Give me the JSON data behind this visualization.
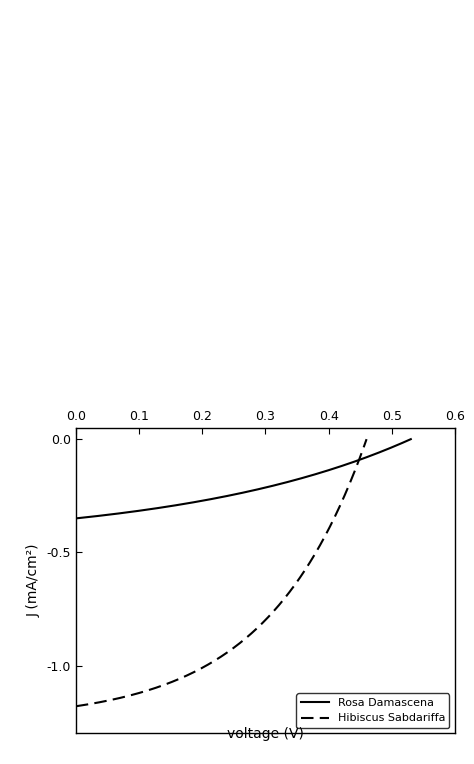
{
  "rosa_damascena": {
    "label": "Rosa Damascena",
    "linestyle": "solid",
    "color": "black",
    "Jsc": -0.35,
    "Voc": 0.53,
    "n": 14,
    "n2": 2.0
  },
  "hibiscus_sabdariffa": {
    "label": "Hibiscus Sabdariffa",
    "linestyle": "dashed",
    "color": "black",
    "Jsc": -1.18,
    "Voc": 0.46,
    "n": 6,
    "n2": 2.0
  },
  "xlim": [
    0.0,
    0.6
  ],
  "ylim": [
    -1.3,
    0.05
  ],
  "xticks": [
    0.0,
    0.1,
    0.2,
    0.3,
    0.4,
    0.5,
    0.6
  ],
  "yticks": [
    0.0,
    -0.5,
    -1.0
  ],
  "xlabel": "voltage (V)",
  "ylabel": "J (mA/cm²)",
  "figwidth": 4.74,
  "figheight": 7.64,
  "dpi": 100,
  "background_color": "#ffffff",
  "text_color": "#000000",
  "legend_loc": "lower right",
  "legend_fontsize": 8,
  "axis_fontsize": 10,
  "tick_fontsize": 9
}
